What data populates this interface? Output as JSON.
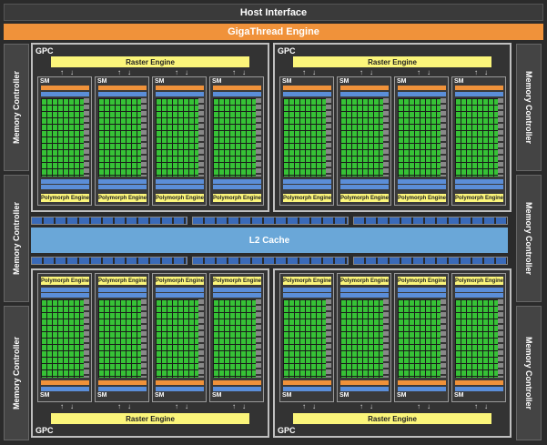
{
  "host_interface": "Host Interface",
  "gigathread": "GigaThread Engine",
  "memory_controller": "Memory Controller",
  "l2_cache": "L2 Cache",
  "gpc_label": "GPC",
  "raster_engine": "Raster Engine",
  "sm_label": "SM",
  "polymorph_engine": "Polymorph Engine",
  "colors": {
    "orange": "#f0923a",
    "yellow": "#fbf57a",
    "green": "#36c236",
    "blue": "#5b8ed8",
    "l2": "#6aa7d8"
  }
}
